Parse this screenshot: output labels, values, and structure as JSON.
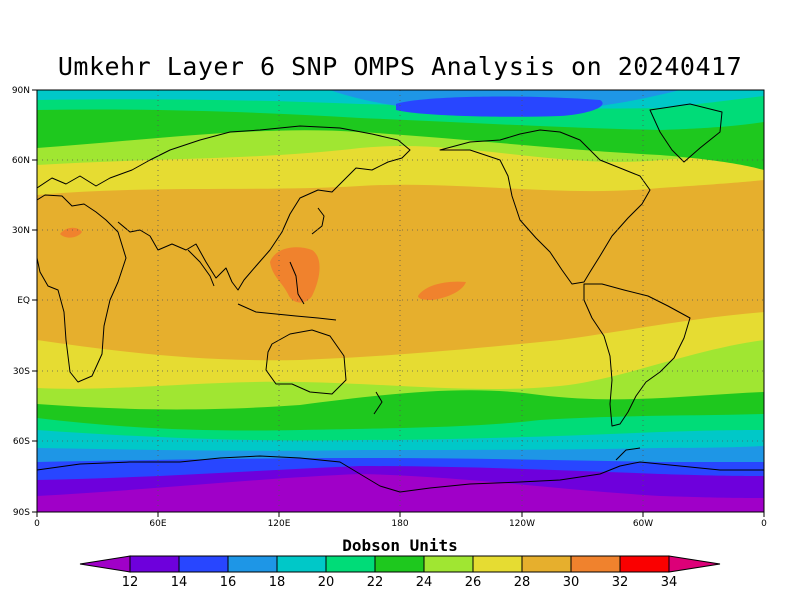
{
  "title": "Umkehr Layer 6 SNP OMPS Analysis on 20240417",
  "map": {
    "projection": "cylindrical equidistant",
    "lon_range": [
      0,
      360
    ],
    "lat_range": [
      -90,
      90
    ],
    "lat_ticks": [
      "90N",
      "60N",
      "30N",
      "EQ",
      "30S",
      "60S",
      "90S"
    ],
    "lon_ticks": [
      "0",
      "60E",
      "120E",
      "180",
      "120W",
      "60W",
      "0"
    ],
    "grid": "dotted"
  },
  "colorbar": {
    "title": "Dobson Units",
    "labels": [
      "12",
      "14",
      "16",
      "18",
      "20",
      "22",
      "24",
      "26",
      "28",
      "30",
      "32",
      "34"
    ],
    "colors": [
      "#a000c8",
      "#6e00dc",
      "#2846ff",
      "#1e96e6",
      "#00c8c8",
      "#00dc78",
      "#1ec81e",
      "#a0e632",
      "#e6dc32",
      "#e6af2d",
      "#f0822d",
      "#fa0000",
      "#dc0078"
    ]
  }
}
